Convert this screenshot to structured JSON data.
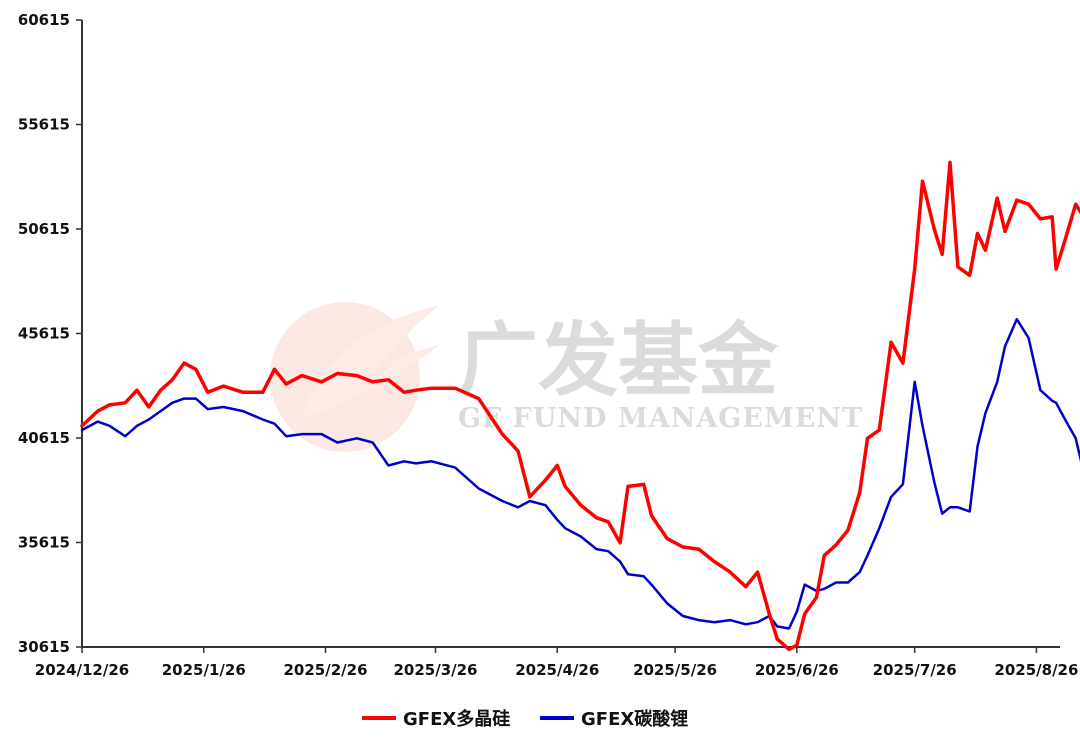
{
  "watermark": {
    "text_cn": "广发基金",
    "text_en": "GF FUND MANAGEMENT"
  },
  "chart_data": {
    "type": "line",
    "title": "",
    "xlabel": "",
    "ylabel": "",
    "ylim": [
      30615,
      60615
    ],
    "yticks": [
      30615,
      35615,
      40615,
      45615,
      50615,
      55615,
      60615
    ],
    "xlim": [
      "2024-12-26",
      "2025-09-01"
    ],
    "xticks": [
      "2024-12-26",
      "2025-01-26",
      "2025-02-26",
      "2025-03-26",
      "2025-04-26",
      "2025-05-26",
      "2025-06-26",
      "2025-07-26",
      "2025-08-26"
    ],
    "xtick_labels": [
      "2024/12/26",
      "2025/1/26",
      "2025/2/26",
      "2025/3/26",
      "2025/4/26",
      "2025/5/26",
      "2025/6/26",
      "2025/7/26",
      "2025/8/26"
    ],
    "grid": false,
    "legend_position": "bottom-center",
    "series": [
      {
        "name": "GFEX多晶硅",
        "color": "#ff0000",
        "points": [
          [
            "2024-12-26",
            41200
          ],
          [
            "2024-12-30",
            41900
          ],
          [
            "2025-01-02",
            42200
          ],
          [
            "2025-01-06",
            42300
          ],
          [
            "2025-01-09",
            42900
          ],
          [
            "2025-01-12",
            42100
          ],
          [
            "2025-01-15",
            42900
          ],
          [
            "2025-01-18",
            43400
          ],
          [
            "2025-01-21",
            44200
          ],
          [
            "2025-01-24",
            43900
          ],
          [
            "2025-01-27",
            42800
          ],
          [
            "2025-01-31",
            43100
          ],
          [
            "2025-02-05",
            42800
          ],
          [
            "2025-02-10",
            42800
          ],
          [
            "2025-02-13",
            43900
          ],
          [
            "2025-02-16",
            43200
          ],
          [
            "2025-02-20",
            43600
          ],
          [
            "2025-02-25",
            43300
          ],
          [
            "2025-03-01",
            43700
          ],
          [
            "2025-03-06",
            43600
          ],
          [
            "2025-03-10",
            43300
          ],
          [
            "2025-03-14",
            43400
          ],
          [
            "2025-03-18",
            42800
          ],
          [
            "2025-03-21",
            42900
          ],
          [
            "2025-03-25",
            43000
          ],
          [
            "2025-03-31",
            43000
          ],
          [
            "2025-04-06",
            42500
          ],
          [
            "2025-04-12",
            40800
          ],
          [
            "2025-04-16",
            40000
          ],
          [
            "2025-04-19",
            37800
          ],
          [
            "2025-04-23",
            38600
          ],
          [
            "2025-04-26",
            39300
          ],
          [
            "2025-04-28",
            38300
          ],
          [
            "2025-05-02",
            37400
          ],
          [
            "2025-05-06",
            36800
          ],
          [
            "2025-05-09",
            36600
          ],
          [
            "2025-05-12",
            35600
          ],
          [
            "2025-05-14",
            38300
          ],
          [
            "2025-05-18",
            38400
          ],
          [
            "2025-05-20",
            36900
          ],
          [
            "2025-05-24",
            35800
          ],
          [
            "2025-05-28",
            35400
          ],
          [
            "2025-06-01",
            35300
          ],
          [
            "2025-06-05",
            34700
          ],
          [
            "2025-06-09",
            34200
          ],
          [
            "2025-06-13",
            33500
          ],
          [
            "2025-06-16",
            34200
          ],
          [
            "2025-06-19",
            32200
          ],
          [
            "2025-06-21",
            31000
          ],
          [
            "2025-06-24",
            30500
          ],
          [
            "2025-06-26",
            30700
          ],
          [
            "2025-06-28",
            32200
          ],
          [
            "2025-07-01",
            33000
          ],
          [
            "2025-07-03",
            35000
          ],
          [
            "2025-07-06",
            35500
          ],
          [
            "2025-07-09",
            36200
          ],
          [
            "2025-07-12",
            38000
          ],
          [
            "2025-07-14",
            40600
          ],
          [
            "2025-07-17",
            41000
          ],
          [
            "2025-07-20",
            45200
          ],
          [
            "2025-07-23",
            44200
          ],
          [
            "2025-07-26",
            48700
          ],
          [
            "2025-07-28",
            52900
          ],
          [
            "2025-07-31",
            50600
          ],
          [
            "2025-08-02",
            49400
          ],
          [
            "2025-08-04",
            53800
          ],
          [
            "2025-08-06",
            48800
          ],
          [
            "2025-08-09",
            48400
          ],
          [
            "2025-08-11",
            50400
          ],
          [
            "2025-08-13",
            49600
          ],
          [
            "2025-08-16",
            52100
          ],
          [
            "2025-08-18",
            50500
          ],
          [
            "2025-08-21",
            52000
          ],
          [
            "2025-08-24",
            51800
          ],
          [
            "2025-08-27",
            51100
          ],
          [
            "2025-08-30",
            51200
          ],
          [
            "2025-08-31",
            48700
          ],
          [
            "2025-09-02",
            49900
          ],
          [
            "2025-09-05",
            51800
          ],
          [
            "2025-09-07",
            51200
          ]
        ]
      },
      {
        "name": "GFEX碳酸锂",
        "color": "#0000cc",
        "points": [
          [
            "2024-12-26",
            41000
          ],
          [
            "2024-12-30",
            41400
          ],
          [
            "2025-01-02",
            41200
          ],
          [
            "2025-01-06",
            40700
          ],
          [
            "2025-01-09",
            41200
          ],
          [
            "2025-01-12",
            41500
          ],
          [
            "2025-01-15",
            41900
          ],
          [
            "2025-01-18",
            42300
          ],
          [
            "2025-01-21",
            42500
          ],
          [
            "2025-01-24",
            42500
          ],
          [
            "2025-01-27",
            42000
          ],
          [
            "2025-01-31",
            42100
          ],
          [
            "2025-02-05",
            41900
          ],
          [
            "2025-02-10",
            41500
          ],
          [
            "2025-02-13",
            41300
          ],
          [
            "2025-02-16",
            40700
          ],
          [
            "2025-02-20",
            40800
          ],
          [
            "2025-02-25",
            40800
          ],
          [
            "2025-03-01",
            40400
          ],
          [
            "2025-03-06",
            40600
          ],
          [
            "2025-03-10",
            40400
          ],
          [
            "2025-03-14",
            39300
          ],
          [
            "2025-03-18",
            39500
          ],
          [
            "2025-03-21",
            39400
          ],
          [
            "2025-03-25",
            39500
          ],
          [
            "2025-03-31",
            39200
          ],
          [
            "2025-04-06",
            38200
          ],
          [
            "2025-04-12",
            37600
          ],
          [
            "2025-04-16",
            37300
          ],
          [
            "2025-04-19",
            37600
          ],
          [
            "2025-04-23",
            37400
          ],
          [
            "2025-04-26",
            36700
          ],
          [
            "2025-04-28",
            36300
          ],
          [
            "2025-05-02",
            35900
          ],
          [
            "2025-05-06",
            35300
          ],
          [
            "2025-05-09",
            35200
          ],
          [
            "2025-05-12",
            34700
          ],
          [
            "2025-05-14",
            34100
          ],
          [
            "2025-05-18",
            34000
          ],
          [
            "2025-05-20",
            33600
          ],
          [
            "2025-05-24",
            32700
          ],
          [
            "2025-05-28",
            32100
          ],
          [
            "2025-06-01",
            31900
          ],
          [
            "2025-06-05",
            31800
          ],
          [
            "2025-06-09",
            31900
          ],
          [
            "2025-06-13",
            31700
          ],
          [
            "2025-06-16",
            31800
          ],
          [
            "2025-06-19",
            32100
          ],
          [
            "2025-06-21",
            31600
          ],
          [
            "2025-06-24",
            31500
          ],
          [
            "2025-06-26",
            32300
          ],
          [
            "2025-06-28",
            33600
          ],
          [
            "2025-07-01",
            33300
          ],
          [
            "2025-07-03",
            33400
          ],
          [
            "2025-07-06",
            33700
          ],
          [
            "2025-07-09",
            33700
          ],
          [
            "2025-07-12",
            34200
          ],
          [
            "2025-07-14",
            35000
          ],
          [
            "2025-07-17",
            36300
          ],
          [
            "2025-07-20",
            37800
          ],
          [
            "2025-07-23",
            38400
          ],
          [
            "2025-07-26",
            43300
          ],
          [
            "2025-07-28",
            41200
          ],
          [
            "2025-07-31",
            38500
          ],
          [
            "2025-08-02",
            37000
          ],
          [
            "2025-08-04",
            37300
          ],
          [
            "2025-08-06",
            37300
          ],
          [
            "2025-08-09",
            37100
          ],
          [
            "2025-08-11",
            40200
          ],
          [
            "2025-08-13",
            41800
          ],
          [
            "2025-08-16",
            43300
          ],
          [
            "2025-08-18",
            45000
          ],
          [
            "2025-08-21",
            46300
          ],
          [
            "2025-08-24",
            45400
          ],
          [
            "2025-08-27",
            42900
          ],
          [
            "2025-08-30",
            42400
          ],
          [
            "2025-08-31",
            42300
          ],
          [
            "2025-09-02",
            41600
          ],
          [
            "2025-09-05",
            40600
          ],
          [
            "2025-09-07",
            39000
          ]
        ]
      }
    ]
  }
}
